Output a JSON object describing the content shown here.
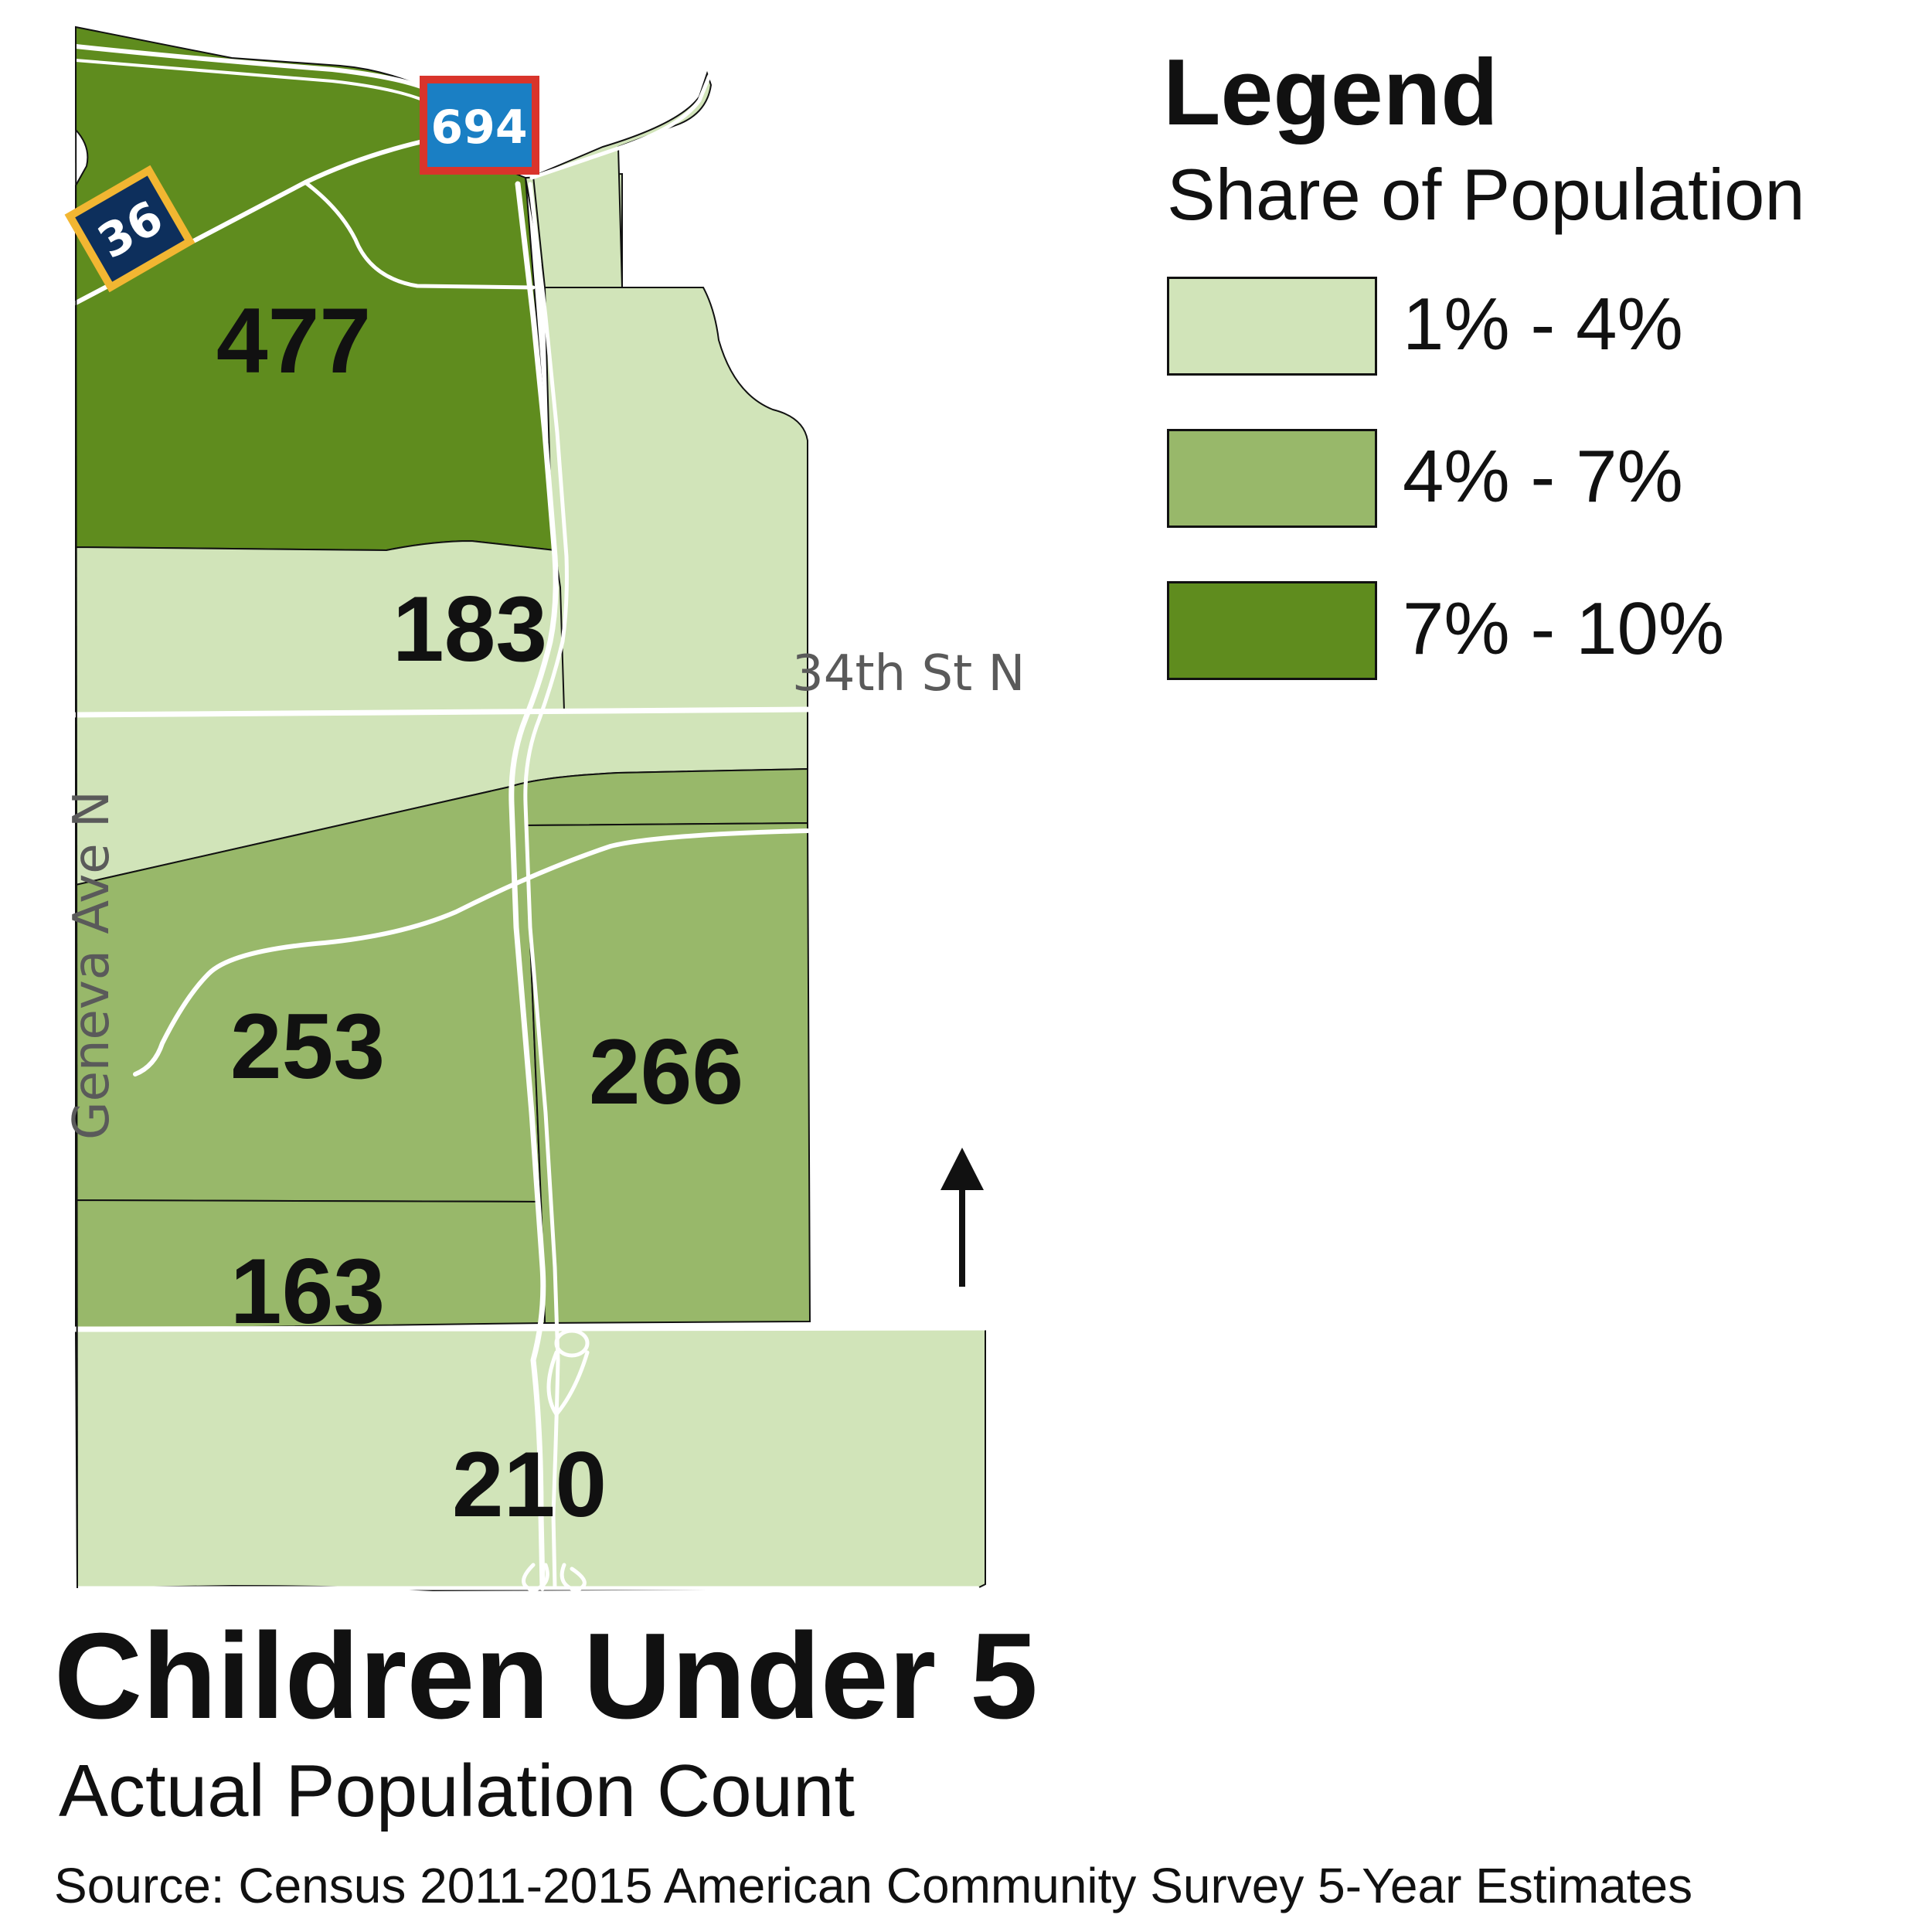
{
  "title": "Children Under 5",
  "subtitle": "Actual Population Count",
  "source": "Source: Census 2011-2015 American Community Survey 5-Year Estimates",
  "legend": {
    "title": "Legend",
    "subtitle": "Share of Population",
    "items": [
      {
        "label": "1% - 4%",
        "color": "#d1e4b9"
      },
      {
        "label": "4% - 7%",
        "color": "#98b86a"
      },
      {
        "label": "7% - 10%",
        "color": "#5f8c1e"
      }
    ]
  },
  "tracts": [
    {
      "value": "477",
      "class": "7% - 10%",
      "color": "#5f8c1e"
    },
    {
      "value": "183",
      "class": "1% - 4%",
      "color": "#d1e4b9"
    },
    {
      "value": "253",
      "class": "4% - 7%",
      "color": "#98b86a"
    },
    {
      "value": "266",
      "class": "4% - 7%",
      "color": "#98b86a"
    },
    {
      "value": "163",
      "class": "4% - 7%",
      "color": "#98b86a"
    },
    {
      "value": "210",
      "class": "1% - 4%",
      "color": "#d1e4b9"
    }
  ],
  "streets": {
    "east_west": "34th St N",
    "north_south": "Geneva Ave N"
  },
  "shields": {
    "interstate": "694",
    "state_highway": "36"
  },
  "north_arrow": "north-arrow-icon",
  "colors": {
    "road": "#ffffff",
    "boundary": "#111111",
    "interstate_shield": "#1a7fc4",
    "interstate_border": "#d9342b",
    "state_shield": "#0d2f5c",
    "state_border": "#f2b632"
  }
}
